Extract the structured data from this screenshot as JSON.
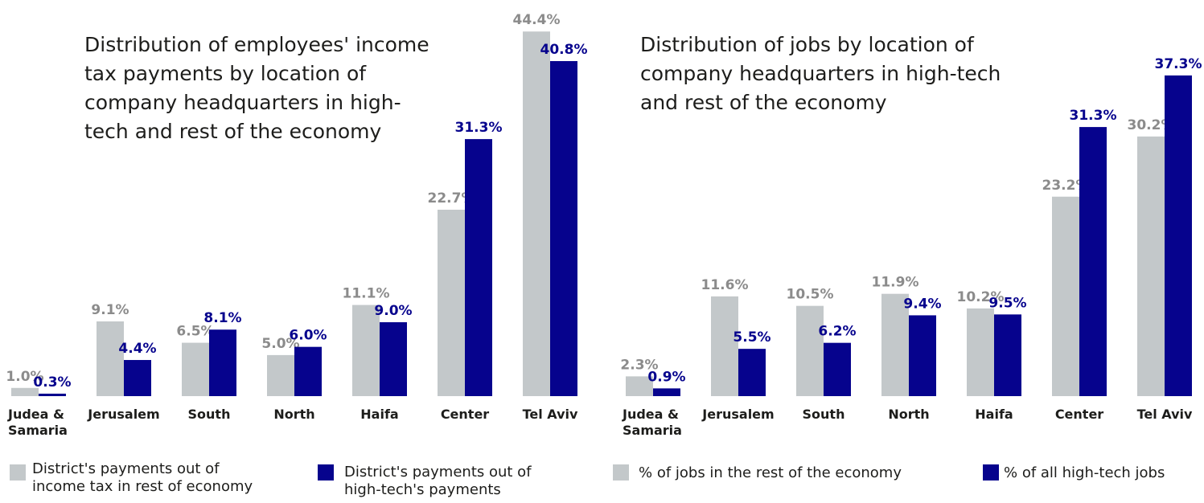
{
  "colors": {
    "rest": "#c3c8ca",
    "hightech": "#06038d",
    "rest_label": "#8b8b8b",
    "hightech_label": "#06038d",
    "text": "#1d1d1b"
  },
  "chart_data": [
    {
      "type": "bar",
      "title": [
        "Distribution of employees' income",
        "tax payments by location of",
        "company headquarters in high-",
        "tech and rest of the economy"
      ],
      "categories": [
        "Judea &\nSamaria",
        "Jerusalem",
        "South",
        "North",
        "Haifa",
        "Center",
        "Tel Aviv"
      ],
      "series": [
        {
          "name": "District's payments out of income tax in rest of economy",
          "values": [
            1.0,
            9.1,
            6.5,
            5.0,
            11.1,
            22.7,
            44.4
          ]
        },
        {
          "name": "District's payments out of high-tech's payments",
          "values": [
            0.3,
            4.4,
            8.1,
            6.0,
            9.0,
            31.3,
            40.8
          ]
        }
      ],
      "value_labels": [
        [
          "1.0%",
          "9.1%",
          "6.5%",
          "5.0%",
          "11.1%",
          "22.7%",
          "44.4%"
        ],
        [
          "0.3%",
          "4.4%",
          "8.1%",
          "6.0%",
          "9.0%",
          "31.3%",
          "40.8%"
        ]
      ],
      "ylim": [
        0,
        50
      ],
      "grid": false,
      "legend": [
        "District's payments out of\nincome tax in rest of economy",
        "District's payments out of\nhigh-tech's payments"
      ]
    },
    {
      "type": "bar",
      "title": [
        "Distribution of jobs by location of",
        "company headquarters in high-tech",
        "and rest of the economy"
      ],
      "categories": [
        "Judea &\nSamaria",
        "Jerusalem",
        "South",
        "North",
        "Haifa",
        "Center",
        "Tel Aviv"
      ],
      "series": [
        {
          "name": "% of jobs in the rest of the economy",
          "values": [
            2.3,
            11.6,
            10.5,
            11.9,
            10.2,
            23.2,
            30.2
          ]
        },
        {
          "name": "% of all high-tech jobs",
          "values": [
            0.9,
            5.5,
            6.2,
            9.4,
            9.5,
            31.3,
            37.3
          ]
        }
      ],
      "value_labels": [
        [
          "2.3%",
          "11.6%",
          "10.5%",
          "11.9%",
          "10.2%",
          "23.2%",
          "30.2%"
        ],
        [
          "0.9%",
          "5.5%",
          "6.2%",
          "9.4%",
          "9.5%",
          "31.3%",
          "37.3%"
        ]
      ],
      "ylim": [
        0,
        44
      ],
      "grid": false,
      "legend": [
        "% of jobs in the rest of the economy",
        "% of all high-tech jobs"
      ]
    }
  ]
}
